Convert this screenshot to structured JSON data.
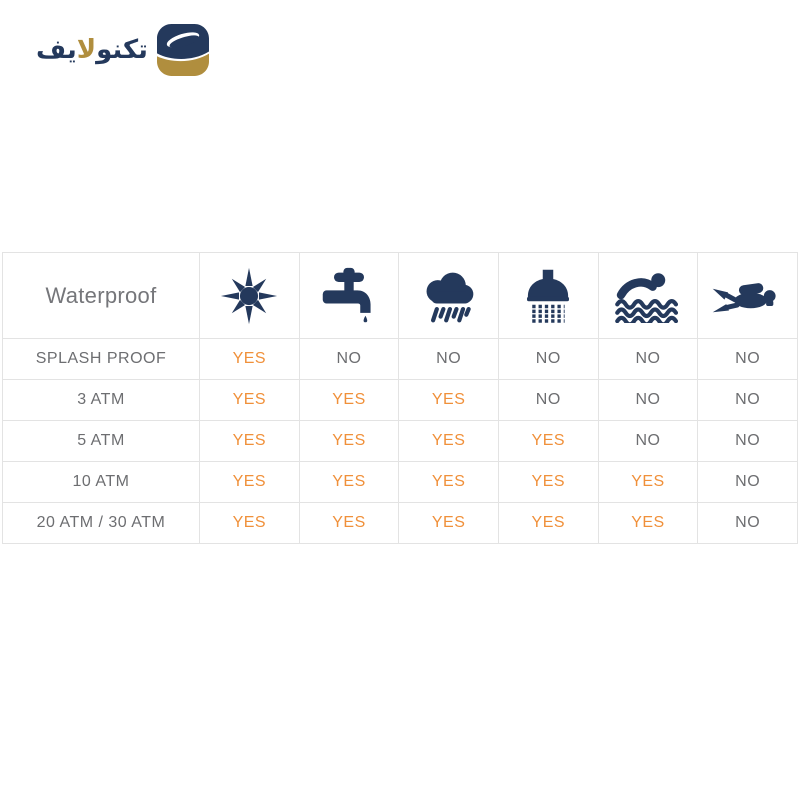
{
  "page": {
    "background": "#ffffff"
  },
  "logo": {
    "brand_name": "تكنولايف",
    "icon": "technolife-logo-icon",
    "segments": [
      {
        "text": "تكنو",
        "color": "navy"
      },
      {
        "text": "لا",
        "color": "gold"
      },
      {
        "text": "يف",
        "color": "navy"
      }
    ]
  },
  "colors": {
    "navy": "#24395c",
    "gold": "#b08e3e",
    "orange": "#f0903a",
    "gray": "#6d6e71",
    "header_gray": "#75767a",
    "border": "#e3e3e3"
  },
  "table": {
    "header_label": "Waterproof",
    "column_icons": [
      "sun-icon",
      "faucet-icon",
      "rain-cloud-icon",
      "shower-icon",
      "swimmer-icon",
      "scuba-diver-icon"
    ],
    "rows": [
      {
        "label": "SPLASH PROOF",
        "values": [
          "YES",
          "NO",
          "NO",
          "NO",
          "NO",
          "NO"
        ]
      },
      {
        "label": "3 ATM",
        "values": [
          "YES",
          "YES",
          "YES",
          "NO",
          "NO",
          "NO"
        ]
      },
      {
        "label": "5 ATM",
        "values": [
          "YES",
          "YES",
          "YES",
          "YES",
          "NO",
          "NO"
        ]
      },
      {
        "label": "10 ATM",
        "values": [
          "YES",
          "YES",
          "YES",
          "YES",
          "YES",
          "NO"
        ]
      },
      {
        "label": "20 ATM / 30 ATM",
        "values": [
          "YES",
          "YES",
          "YES",
          "YES",
          "YES",
          "NO"
        ]
      }
    ]
  },
  "chart_data": {
    "type": "table",
    "title": "Waterproof",
    "columns": [
      "sun-icon",
      "faucet-icon",
      "rain-cloud-icon",
      "shower-icon",
      "swimmer-icon",
      "scuba-diver-icon"
    ],
    "rows": [
      {
        "label": "SPLASH PROOF",
        "values": [
          "YES",
          "NO",
          "NO",
          "NO",
          "NO",
          "NO"
        ]
      },
      {
        "label": "3 ATM",
        "values": [
          "YES",
          "YES",
          "YES",
          "NO",
          "NO",
          "NO"
        ]
      },
      {
        "label": "5 ATM",
        "values": [
          "YES",
          "YES",
          "YES",
          "YES",
          "NO",
          "NO"
        ]
      },
      {
        "label": "10 ATM",
        "values": [
          "YES",
          "YES",
          "YES",
          "YES",
          "YES",
          "NO"
        ]
      },
      {
        "label": "20 ATM / 30 ATM",
        "values": [
          "YES",
          "YES",
          "YES",
          "YES",
          "YES",
          "NO"
        ]
      }
    ],
    "value_colors": {
      "YES": "#f0903a",
      "NO": "#6d6e71"
    }
  }
}
